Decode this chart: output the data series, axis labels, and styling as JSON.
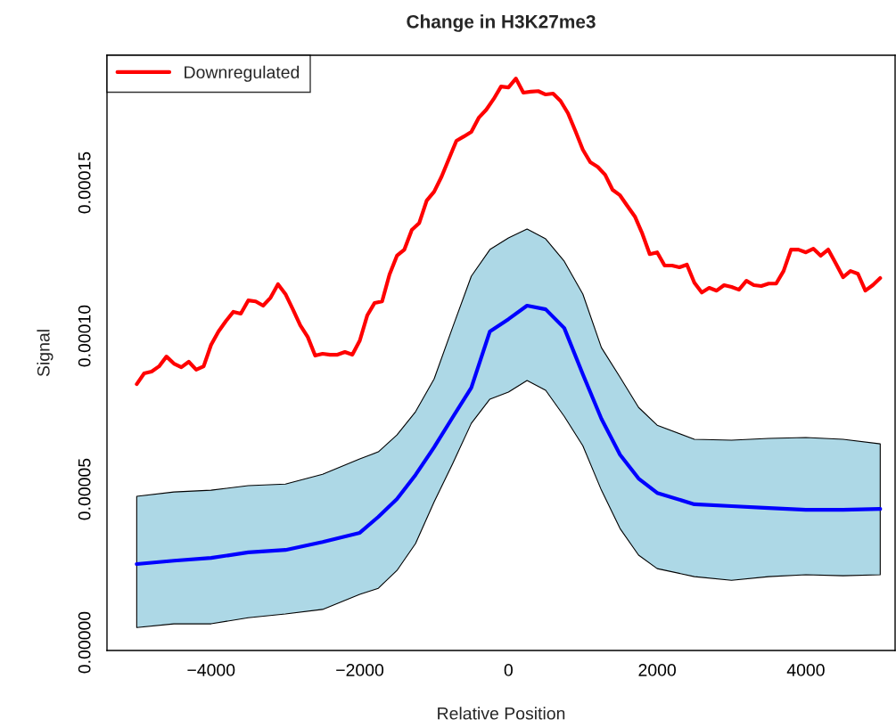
{
  "chart_data": {
    "type": "line",
    "title": "Change in H3K27me3",
    "xlabel": "Relative Position",
    "ylabel": "Signal",
    "xlim": [
      -5400,
      5200
    ],
    "ylim": [
      -2.6e-06,
      0.0001916
    ],
    "xticks": [
      {
        "value": -4000,
        "label": "−4000"
      },
      {
        "value": -2000,
        "label": "−2000"
      },
      0,
      2000,
      4000
    ],
    "yticks": [
      {
        "value": 0,
        "label": "0.00000"
      },
      {
        "value": 5e-05,
        "label": "0.00005"
      },
      {
        "value": 0.0001,
        "label": "0.00010"
      },
      {
        "value": 0.00015,
        "label": "0.00015"
      }
    ],
    "grid": false,
    "legend": "top left",
    "line_style": "solid",
    "marker": "none",
    "series": [
      {
        "name": "Downregulated",
        "color": "#ff0000",
        "x": [
          -5000,
          -4900,
          -4800,
          -4700,
          -4600,
          -4500,
          -4400,
          -4300,
          -4200,
          -4100,
          -4000,
          -3900,
          -3800,
          -3700,
          -3600,
          -3500,
          -3400,
          -3300,
          -3200,
          -3100,
          -3000,
          -2900,
          -2800,
          -2700,
          -2600,
          -2500,
          -2400,
          -2300,
          -2200,
          -2100,
          -2000,
          -1900,
          -1800,
          -1700,
          -1600,
          -1500,
          -1400,
          -1300,
          -1200,
          -1100,
          -1000,
          -900,
          -800,
          -700,
          -600,
          -500,
          -400,
          -300,
          -200,
          -100,
          0,
          100,
          200,
          300,
          400,
          500,
          600,
          700,
          800,
          900,
          1000,
          1100,
          1200,
          1300,
          1400,
          1500,
          1600,
          1700,
          1800,
          1900,
          2000,
          2100,
          2200,
          2300,
          2400,
          2500,
          2600,
          2700,
          2800,
          2900,
          3000,
          3100,
          3200,
          3300,
          3400,
          3500,
          3600,
          3700,
          3800,
          3900,
          4000,
          4100,
          4200,
          4300,
          4400,
          4500,
          4600,
          4700,
          4800,
          4900,
          5000
        ],
        "values": [
          8.43e-05,
          8.78e-05,
          8.84e-05,
          9.01e-05,
          9.33e-05,
          9.1e-05,
          8.98e-05,
          9.16e-05,
          8.9e-05,
          9.01e-05,
          9.71e-05,
          0.0001015,
          0.0001049,
          0.0001079,
          0.0001073,
          0.0001116,
          0.0001113,
          0.0001099,
          0.0001125,
          0.0001169,
          0.0001137,
          0.0001087,
          0.0001035,
          9.97e-05,
          9.36e-05,
          9.42e-05,
          9.39e-05,
          9.39e-05,
          9.48e-05,
          9.39e-05,
          9.85e-05,
          0.0001067,
          0.0001108,
          0.0001113,
          0.0001201,
          0.0001262,
          0.0001282,
          0.0001346,
          0.0001369,
          0.0001442,
          0.0001471,
          0.000152,
          0.0001579,
          0.0001637,
          0.0001651,
          0.0001666,
          0.0001712,
          0.0001738,
          0.0001773,
          0.0001814,
          0.0001811,
          0.000184,
          0.0001794,
          0.0001797,
          0.0001799,
          0.0001788,
          0.0001791,
          0.0001767,
          0.0001727,
          0.0001669,
          0.0001608,
          0.0001567,
          0.0001552,
          0.0001526,
          0.0001477,
          0.0001459,
          0.0001424,
          0.000139,
          0.0001334,
          0.0001267,
          0.0001273,
          0.000123,
          0.000123,
          0.0001224,
          0.0001233,
          0.0001174,
          0.0001142,
          0.0001157,
          0.0001148,
          0.0001166,
          0.000116,
          0.0001151,
          0.000118,
          0.0001166,
          0.0001163,
          0.0001171,
          0.0001171,
          0.0001212,
          0.0001282,
          0.0001282,
          0.0001273,
          0.0001285,
          0.0001262,
          0.0001282,
          0.0001238,
          0.0001192,
          0.0001212,
          0.0001203,
          0.0001148,
          0.0001166,
          0.0001189
        ]
      },
      {
        "color": "#0000ff",
        "x": [
          -5000,
          -4500,
          -4000,
          -3500,
          -3000,
          -2500,
          -2000,
          -1750,
          -1500,
          -1250,
          -1000,
          -750,
          -500,
          -250,
          0,
          250,
          500,
          750,
          1000,
          1250,
          1500,
          1750,
          2000,
          2500,
          3000,
          3500,
          4000,
          4500,
          5000
        ],
        "values": [
          2.56e-05,
          2.67e-05,
          2.76e-05,
          2.94e-05,
          3.02e-05,
          3.28e-05,
          3.58e-05,
          4.1e-05,
          4.68e-05,
          5.47e-05,
          6.37e-05,
          7.35e-05,
          8.31e-05,
          0.0001015,
          0.0001055,
          0.0001099,
          0.0001087,
          0.0001026,
          8.75e-05,
          7.3e-05,
          6.13e-05,
          5.35e-05,
          4.88e-05,
          4.51e-05,
          4.45e-05,
          4.39e-05,
          4.33e-05,
          4.33e-05,
          4.36e-05
        ],
        "lower": [
          4.9e-06,
          6.1e-06,
          6.1e-06,
          8.1e-06,
          9.3e-06,
          1.08e-05,
          1.57e-05,
          1.77e-05,
          2.35e-05,
          3.23e-05,
          4.59e-05,
          5.84e-05,
          7.15e-05,
          7.94e-05,
          8.17e-05,
          8.55e-05,
          8.23e-05,
          7.38e-05,
          6.42e-05,
          4.97e-05,
          3.72e-05,
          2.85e-05,
          2.41e-05,
          2.15e-05,
          2.03e-05,
          2.15e-05,
          2.21e-05,
          2.18e-05,
          2.21e-05
        ],
        "upper": [
          4.77e-05,
          4.91e-05,
          4.97e-05,
          5.12e-05,
          5.17e-05,
          5.49e-05,
          5.99e-05,
          6.22e-05,
          6.77e-05,
          7.53e-05,
          8.6e-05,
          0.0001029,
          0.0001195,
          0.0001282,
          0.000132,
          0.0001349,
          0.0001317,
          0.0001244,
          0.0001137,
          9.62e-05,
          8.66e-05,
          7.67e-05,
          7.09e-05,
          6.63e-05,
          6.6e-05,
          6.66e-05,
          6.69e-05,
          6.63e-05,
          6.48e-05
        ]
      }
    ]
  }
}
